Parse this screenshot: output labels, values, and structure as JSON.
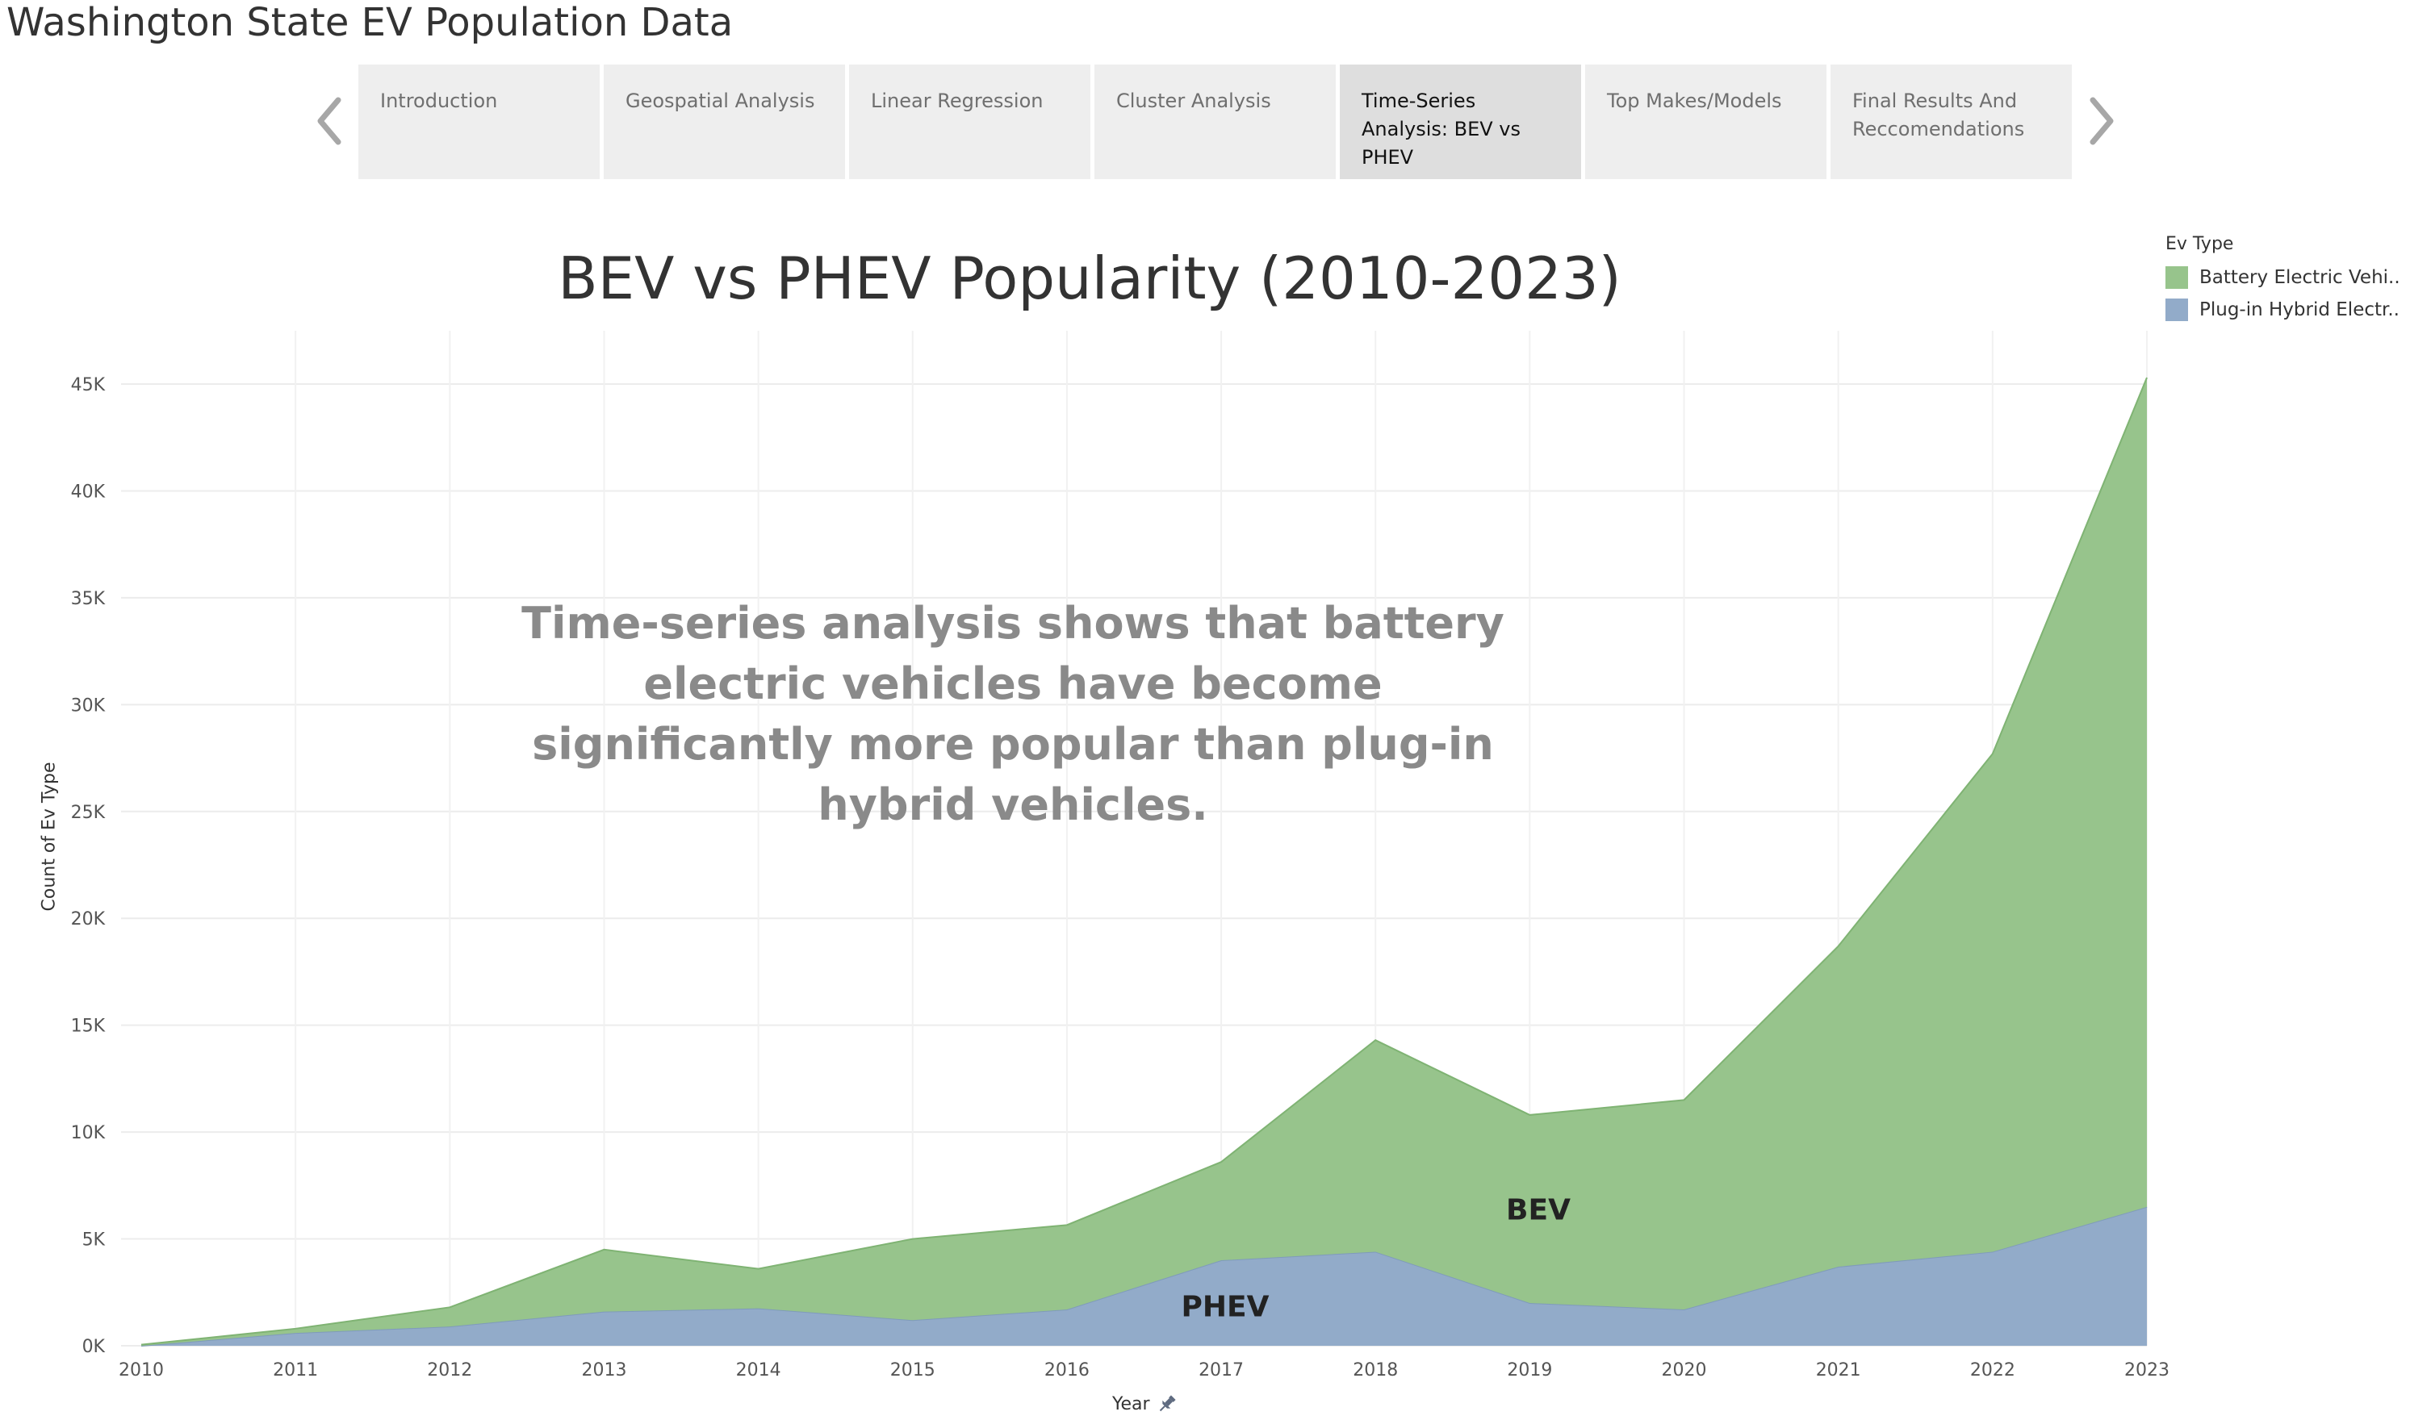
{
  "app": {
    "title": "Washington State EV Population Data"
  },
  "nav": {
    "prev_icon": "chevron-left-icon",
    "next_icon": "chevron-right-icon",
    "tabs": [
      {
        "label": "Introduction",
        "active": false
      },
      {
        "label": "Geospatial Analysis",
        "active": false
      },
      {
        "label": "Linear Regression",
        "active": false
      },
      {
        "label": "Cluster Analysis",
        "active": false
      },
      {
        "label": "Time-Series Analysis: BEV vs PHEV",
        "active": true
      },
      {
        "label": "Top Makes/Models",
        "active": false
      },
      {
        "label": "Final Results And Reccomendations",
        "active": false
      }
    ]
  },
  "legend": {
    "title": "Ev Type",
    "items": [
      {
        "label": "Battery Electric Vehi..",
        "color": "#97c48c"
      },
      {
        "label": "Plug-in Hybrid Electr..",
        "color": "#92abc9"
      }
    ]
  },
  "annotation": {
    "text": "Time-series analysis shows that battery electric vehicles have become significantly more popular than plug-in hybrid vehicles."
  },
  "area_labels": {
    "bev": "BEV",
    "phev": "PHEV"
  },
  "x_pin_icon": "pin-icon",
  "chart_data": {
    "type": "area",
    "stacked": true,
    "title": "BEV vs PHEV Popularity (2010-2023)",
    "xlabel": "Year",
    "ylabel": "Count of Ev Type",
    "x": [
      2010,
      2011,
      2012,
      2013,
      2014,
      2015,
      2016,
      2017,
      2018,
      2019,
      2020,
      2021,
      2022,
      2023
    ],
    "series": [
      {
        "name": "Plug-in Hybrid Electr..",
        "color": "#92abc9",
        "values": [
          0,
          600,
          900,
          1600,
          1750,
          1200,
          1700,
          4000,
          4400,
          2000,
          1700,
          3700,
          4400,
          6500
        ]
      },
      {
        "name": "Battery Electric Vehi..",
        "color": "#97c48c",
        "values": [
          50,
          200,
          900,
          2900,
          1850,
          3800,
          3950,
          4600,
          9900,
          8800,
          9800,
          15000,
          23300,
          38800
        ]
      }
    ],
    "ylim": [
      0,
      45000
    ],
    "yticks": [
      0,
      5000,
      10000,
      15000,
      20000,
      25000,
      30000,
      35000,
      40000,
      45000
    ],
    "ytick_labels": [
      "0K",
      "5K",
      "10K",
      "15K",
      "20K",
      "25K",
      "30K",
      "35K",
      "40K",
      "45K"
    ],
    "xtick_labels": [
      "2010",
      "2011",
      "2012",
      "2013",
      "2014",
      "2015",
      "2016",
      "2017",
      "2018",
      "2019",
      "2020",
      "2021",
      "2022",
      "2023"
    ],
    "grid": true,
    "legend_position": "top-right"
  }
}
